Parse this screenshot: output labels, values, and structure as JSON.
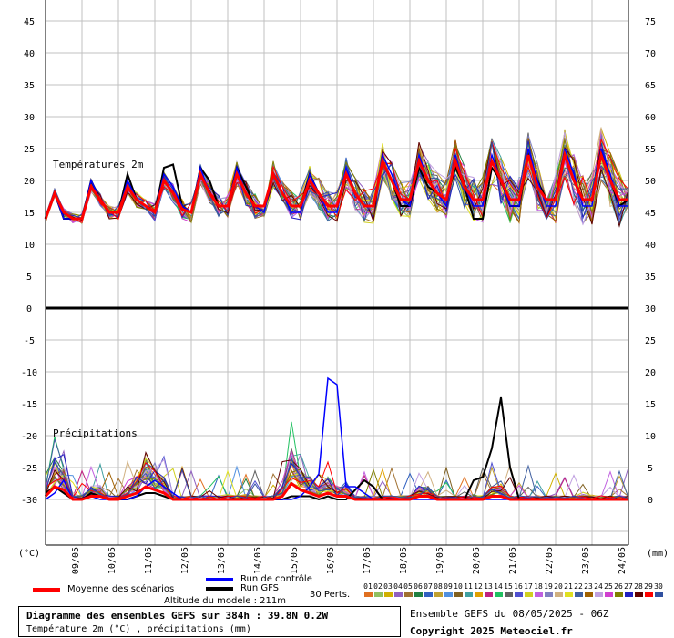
{
  "chart_data": {
    "type": "line",
    "temp_panel_label": "Températures 2m",
    "precip_panel_label": "Précipitations",
    "left_unit": "(°C)",
    "right_unit": "(mm)",
    "left_ticks": [
      45,
      40,
      35,
      30,
      25,
      20,
      15,
      10,
      5,
      0,
      -5,
      -10,
      -15,
      -20,
      -25,
      -30
    ],
    "right_ticks_temp": [
      75,
      70,
      65,
      60,
      55,
      50,
      45,
      40,
      35,
      30
    ],
    "right_ticks_precip": [
      25,
      20,
      15,
      10,
      5,
      0
    ],
    "x_labels": [
      "09/05",
      "10/05",
      "11/05",
      "12/05",
      "13/05",
      "14/05",
      "15/05",
      "16/05",
      "17/05",
      "18/05",
      "19/05",
      "20/05",
      "21/05",
      "22/05",
      "23/05",
      "24/05"
    ],
    "temp_mean": [
      14,
      18,
      15,
      14,
      14,
      19,
      17,
      15,
      15,
      19,
      17,
      16,
      15,
      20,
      18,
      15.5,
      15,
      21,
      18,
      16,
      16,
      21,
      18,
      16,
      16,
      21,
      18,
      16,
      16,
      20,
      18,
      16,
      16,
      21,
      18,
      16,
      16,
      23,
      20,
      17,
      17,
      23,
      20,
      18,
      17,
      23,
      19,
      17,
      17,
      23,
      20,
      17,
      17,
      24,
      19,
      17,
      17,
      24,
      20,
      17,
      17,
      24,
      20,
      17,
      17
    ],
    "temp_control": [
      14,
      18,
      14,
      14,
      14,
      20,
      17,
      15,
      15,
      20,
      17,
      16,
      15,
      21,
      19,
      16,
      15,
      22,
      18,
      16,
      16,
      22,
      18,
      16,
      15,
      21,
      18,
      15,
      15,
      21,
      18,
      15,
      15,
      22,
      18,
      16,
      16,
      24,
      21,
      17,
      16,
      24,
      20,
      18,
      16,
      24,
      19,
      16,
      16,
      24,
      20,
      16,
      16,
      25,
      20,
      16,
      16,
      25,
      21,
      16,
      16,
      25,
      21,
      16,
      16
    ],
    "temp_gfs": [
      14,
      18,
      14,
      14,
      14,
      20,
      17,
      15,
      15,
      21,
      17,
      16,
      15,
      22,
      22.5,
      16,
      15,
      22,
      20,
      16,
      16,
      22,
      19,
      16,
      16,
      21,
      18,
      16,
      16,
      21,
      18,
      16,
      16,
      21,
      18,
      16,
      16,
      23,
      20,
      16,
      16,
      22,
      19,
      18,
      17,
      22,
      19,
      14,
      14,
      22,
      20,
      16,
      16,
      24,
      20,
      17,
      17,
      24,
      20,
      17,
      17,
      25,
      20,
      16,
      17
    ],
    "precip_mean": [
      0.5,
      2,
      1.5,
      0,
      0,
      0.5,
      0.5,
      0,
      0,
      0.5,
      1,
      2,
      1.5,
      1,
      0,
      0,
      0,
      0,
      0,
      0,
      0,
      0,
      0,
      0,
      0,
      0,
      0.5,
      2.5,
      1.5,
      1,
      0.5,
      1,
      0.5,
      0.5,
      0,
      0,
      0,
      0,
      0,
      0,
      0,
      0.5,
      0.5,
      0,
      0,
      0,
      0,
      0,
      0,
      0.5,
      0.5,
      0,
      0,
      0,
      0,
      0,
      0,
      0,
      0,
      0,
      0,
      0,
      0,
      0,
      0
    ],
    "precip_control": [
      0,
      1,
      3,
      0,
      0,
      0.5,
      0,
      0,
      0,
      0,
      0.5,
      2,
      3,
      2,
      1,
      0,
      0,
      0,
      0,
      0,
      0,
      0,
      0,
      0,
      0,
      0,
      0,
      0,
      0.5,
      2,
      4,
      19,
      18,
      2,
      2,
      1,
      0,
      0,
      0,
      0,
      0,
      0,
      0,
      0,
      0,
      0,
      0,
      0,
      0,
      0,
      0,
      0,
      0,
      0,
      0,
      0,
      0,
      0,
      0,
      0,
      0,
      0,
      0,
      0,
      0
    ],
    "precip_gfs": [
      1,
      2,
      1,
      0,
      0,
      1,
      0.5,
      0,
      0,
      0,
      0.5,
      1,
      1,
      0.5,
      0,
      0,
      0,
      0,
      0,
      0,
      0,
      0,
      0,
      0,
      0,
      0,
      0,
      0.5,
      0.5,
      0.5,
      0,
      0.5,
      0,
      0,
      1.5,
      3,
      2,
      0,
      0,
      0,
      0,
      0.5,
      0.5,
      0,
      0,
      0,
      0,
      3,
      3.5,
      8,
      16,
      5,
      0,
      0,
      0,
      0,
      0,
      0,
      0,
      0,
      0,
      0,
      0,
      0,
      0
    ],
    "perturbation_peaks_temp_max": 30,
    "perturbation_peaks_precip_max": 22,
    "legend": {
      "mean": "Moyenne des scénarios",
      "control": "Run de contrôle",
      "gfs": "Run GFS",
      "perts": "30 Perts."
    },
    "member_labels": [
      "01",
      "02",
      "03",
      "04",
      "05",
      "06",
      "07",
      "08",
      "09",
      "10",
      "11",
      "12",
      "13",
      "14",
      "15",
      "16",
      "17",
      "18",
      "19",
      "20",
      "21",
      "22",
      "23",
      "24",
      "25",
      "26",
      "27",
      "28",
      "29",
      "30"
    ],
    "member_colors": [
      "#e07020",
      "#90c060",
      "#d0b000",
      "#9060c0",
      "#a07030",
      "#208040",
      "#3060c0",
      "#c0a030",
      "#5090e0",
      "#806020",
      "#40a0a0",
      "#e0a000",
      "#c02080",
      "#20c060",
      "#606060",
      "#5050d0",
      "#d0d020",
      "#c060e0",
      "#8080c0",
      "#d0b080",
      "#e0e020",
      "#4060a0",
      "#a06000",
      "#c0a0e0",
      "#d040d0",
      "#808000",
      "#2020c0",
      "#600000",
      "#ff0000",
      "#3050a0"
    ]
  },
  "altitude": "Altitude du modele : 211m",
  "info": {
    "title": "Diagramme des ensembles GEFS sur 384h : 39.8N 0.2W",
    "subtitle": "Température 2m (°C) , précipitations (mm)"
  },
  "run_info": "Ensemble GEFS du 08/05/2025 - 06Z",
  "copyright": "Copyright 2025 Meteociel.fr",
  "colors": {
    "mean": "#ff0000",
    "control": "#0000ff",
    "gfs": "#000000",
    "grid": "#c0c0c0"
  }
}
